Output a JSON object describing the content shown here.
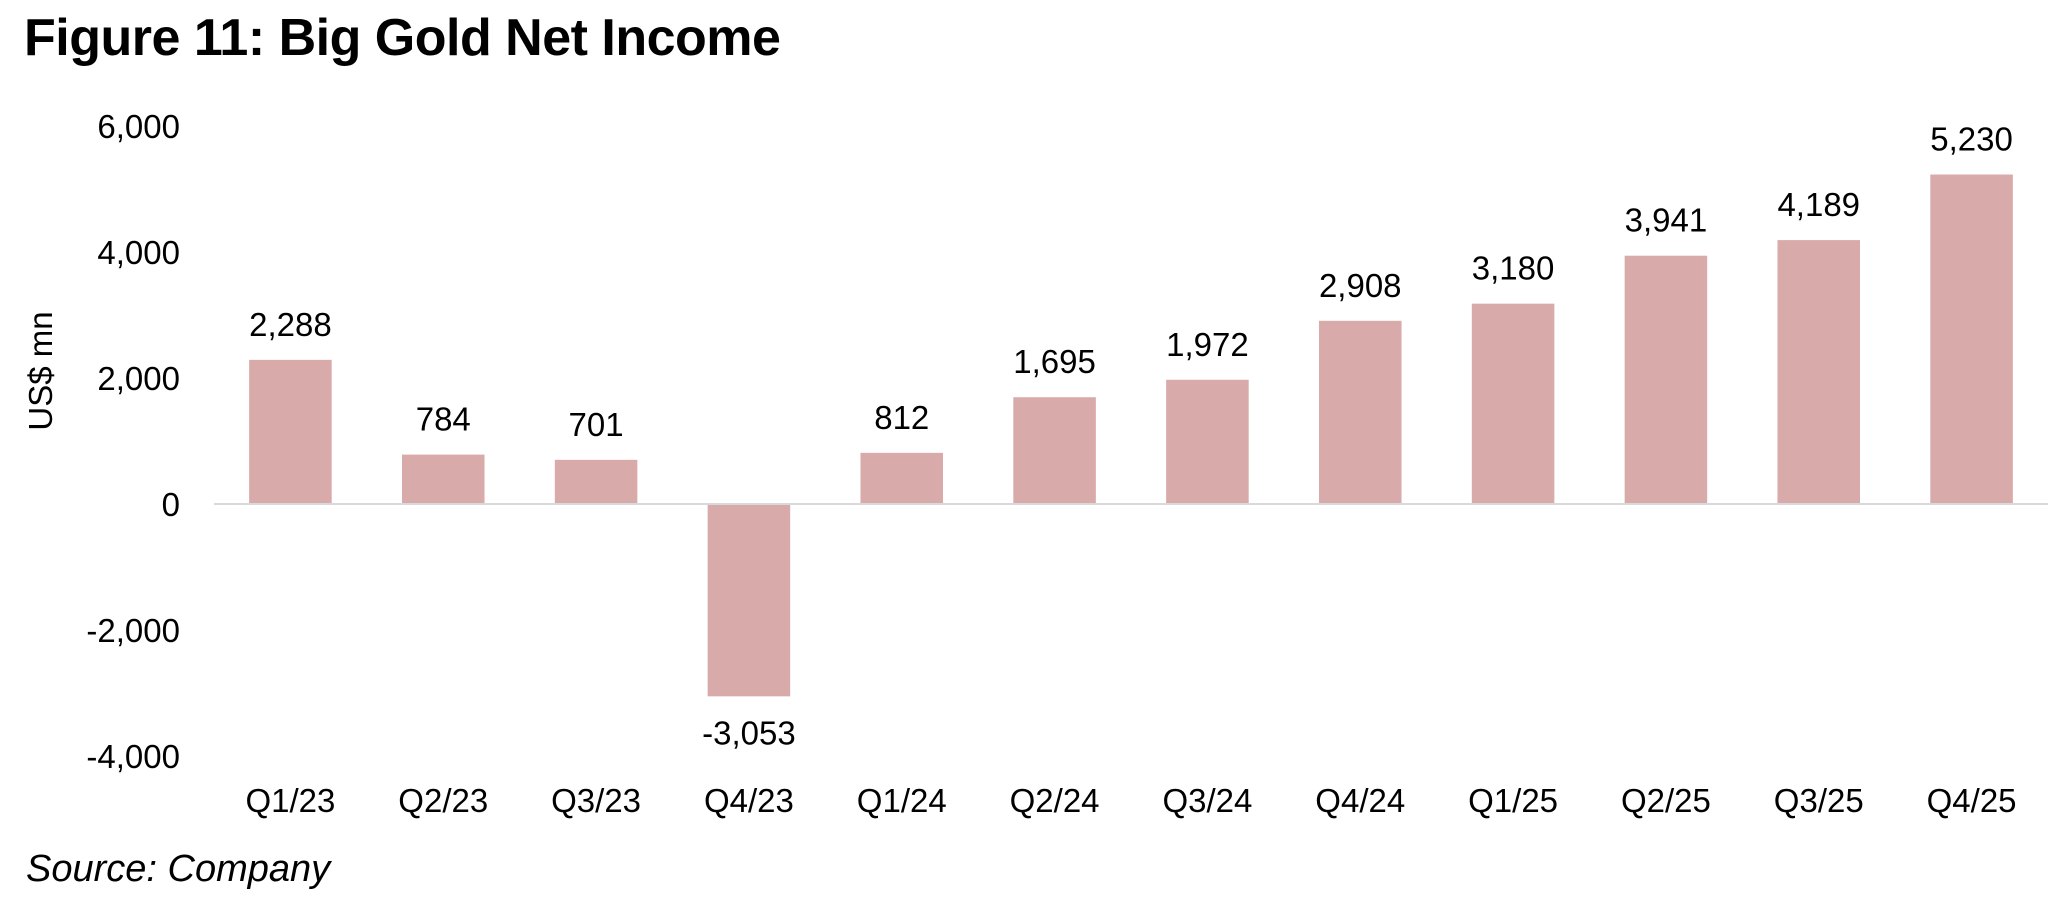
{
  "figure": {
    "title": "Figure 11: Big Gold Net Income",
    "source": "Source: Company"
  },
  "chart_data": {
    "type": "bar",
    "categories": [
      "Q1/23",
      "Q2/23",
      "Q3/23",
      "Q4/23",
      "Q1/24",
      "Q2/24",
      "Q3/24",
      "Q4/24",
      "Q1/25",
      "Q2/25",
      "Q3/25",
      "Q4/25"
    ],
    "values": [
      2288,
      784,
      701,
      -3053,
      812,
      1695,
      1972,
      2908,
      3180,
      3941,
      4189,
      5230
    ],
    "value_labels": [
      "2,288",
      "784",
      "701",
      "-3,053",
      "812",
      "1,695",
      "1,972",
      "2,908",
      "3,180",
      "3,941",
      "4,189",
      "5,230"
    ],
    "ylabel": "US$ mn",
    "ylim": [
      -4000,
      6000
    ],
    "yticks": [
      6000,
      4000,
      2000,
      0,
      -2000,
      -4000
    ],
    "ytick_labels": [
      "6,000",
      "4,000",
      "2,000",
      "0",
      "-2,000",
      "-4,000"
    ],
    "grid": false,
    "bar_color": "#d8aaaa",
    "axis_color": "#d9d9d9"
  }
}
